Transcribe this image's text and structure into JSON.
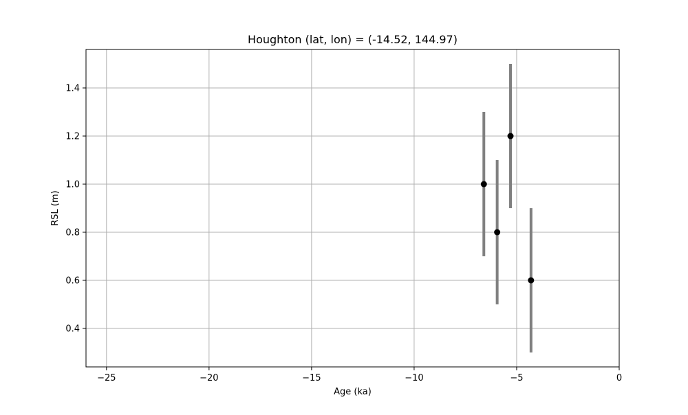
{
  "chart_data": {
    "type": "scatter",
    "title": "Houghton (lat, lon) = (-14.52, 144.97)",
    "xlabel": "Age (ka)",
    "ylabel": "RSL (m)",
    "xlim": [
      -26,
      0
    ],
    "ylim": [
      0.24,
      1.56
    ],
    "xticks": [
      -25,
      -20,
      -15,
      -10,
      -5,
      0
    ],
    "xtick_labels": [
      "−25",
      "−20",
      "−15",
      "−10",
      "−5",
      "0"
    ],
    "yticks": [
      0.4,
      0.6,
      0.8,
      1.0,
      1.2,
      1.4
    ],
    "ytick_labels": [
      "0.4",
      "0.6",
      "0.8",
      "1.0",
      "1.2",
      "1.4"
    ],
    "grid": true,
    "series": [
      {
        "points": [
          {
            "x": -6.6,
            "y": 1.0,
            "yerr": 0.3
          },
          {
            "x": -5.95,
            "y": 0.8,
            "yerr": 0.3
          },
          {
            "x": -5.3,
            "y": 1.2,
            "yerr": 0.3
          },
          {
            "x": -4.3,
            "y": 0.6,
            "yerr": 0.3
          }
        ],
        "marker_color": "#000000",
        "errorbar_color": "#808080"
      }
    ]
  }
}
